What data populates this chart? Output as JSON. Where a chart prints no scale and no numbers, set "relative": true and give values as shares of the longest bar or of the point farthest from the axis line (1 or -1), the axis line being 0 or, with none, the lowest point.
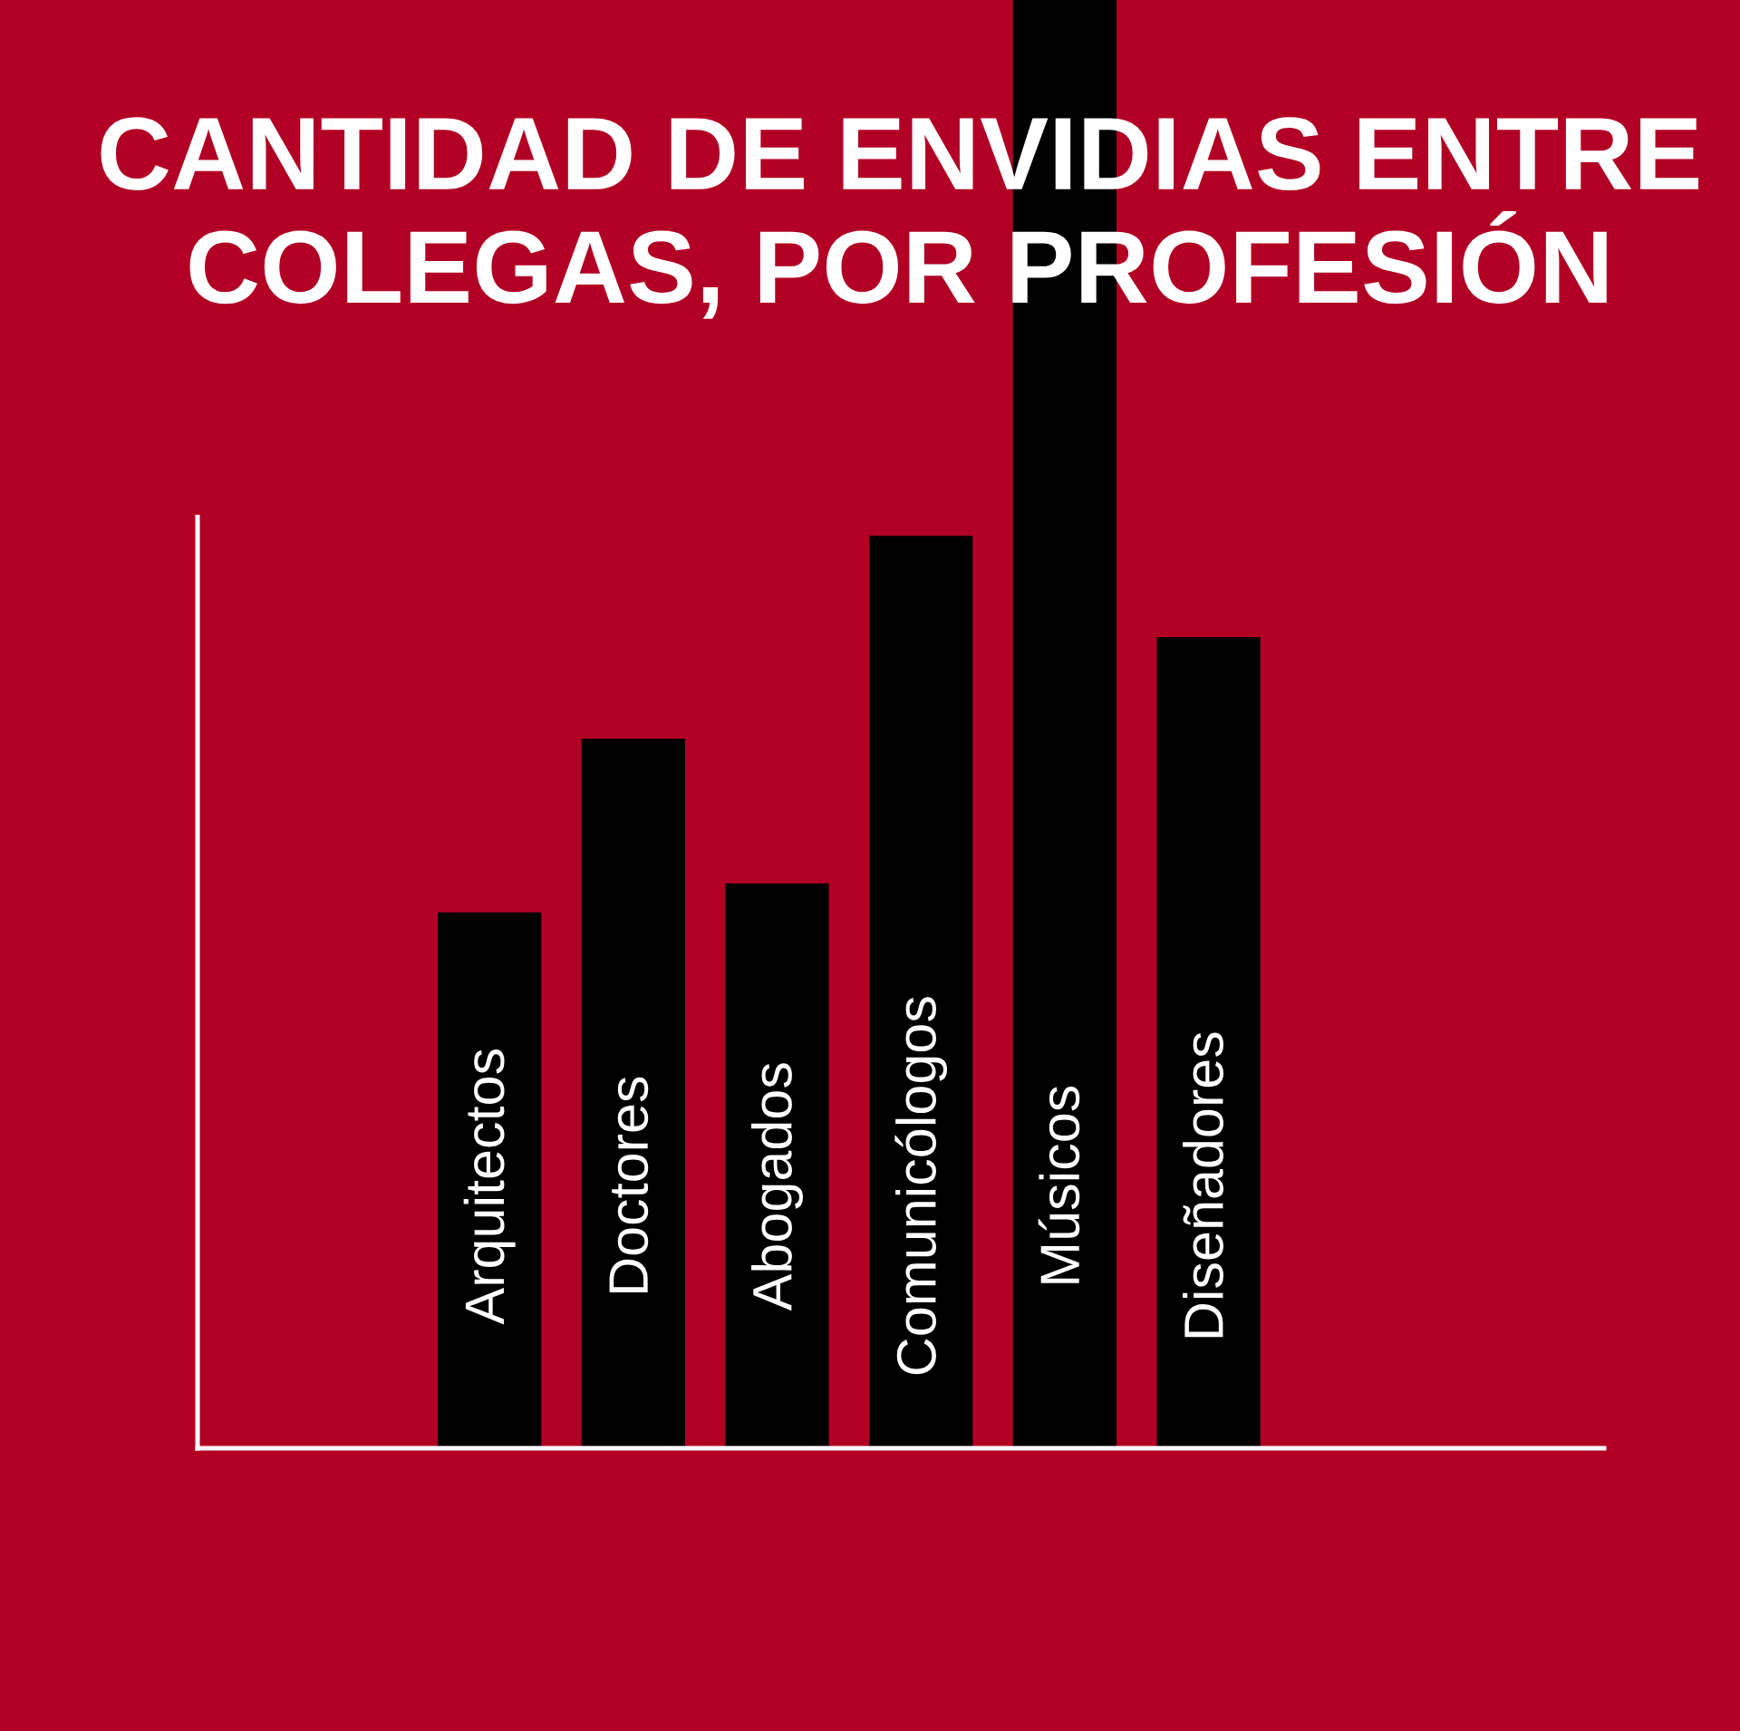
{
  "chart_data": {
    "type": "bar",
    "title": "CANTIDAD DE ENVIDIAS ENTRE\nCOLEGAS, POR PROFESIÓN",
    "categories": [
      "Arquitectos",
      "Doctores",
      "Abogados",
      "Comunicólogos",
      "Músicos",
      "Diseñadores"
    ],
    "values": [
      0.37,
      0.49,
      0.39,
      0.63,
      1,
      0.56
    ],
    "color": "#000000",
    "relative": true
  }
}
